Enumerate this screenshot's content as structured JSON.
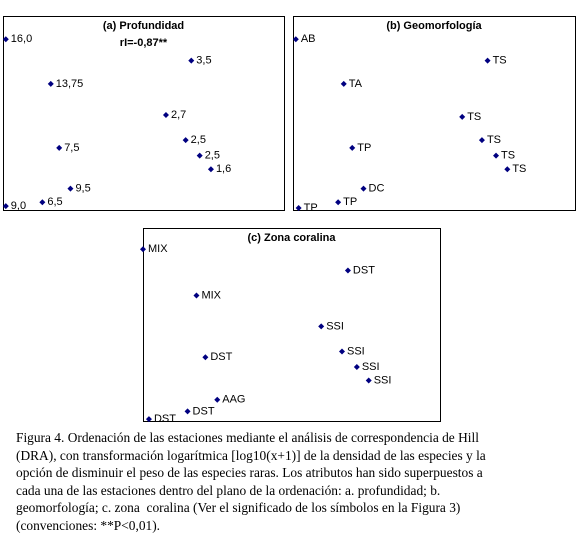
{
  "chart_data": [
    {
      "type": "scatter",
      "title": "(a) Profundidad",
      "subtitle": "rI=-0,87**",
      "color": "#000080",
      "xlim": [
        0,
        100
      ],
      "ylim": [
        0,
        100
      ],
      "x": [
        1,
        67,
        17,
        58,
        65,
        70,
        20,
        74,
        24,
        14,
        1
      ],
      "values": [
        88,
        77,
        65,
        49,
        36,
        28,
        32,
        21,
        11,
        4,
        2
      ],
      "labels": [
        "16,0",
        "3,5",
        "13,75",
        "2,7",
        "2,5",
        "2,5",
        "7,5",
        "1,6",
        "9,5",
        "6,5",
        "9,0"
      ]
    },
    {
      "type": "scatter",
      "title": "(b) Geomorfología",
      "color": "#000080",
      "xlim": [
        0,
        100
      ],
      "ylim": [
        0,
        100
      ],
      "x": [
        1,
        69,
        18,
        60,
        67,
        21,
        72,
        76,
        25,
        16,
        2
      ],
      "values": [
        88,
        77,
        65,
        48,
        36,
        32,
        28,
        21,
        11,
        4,
        1
      ],
      "labels": [
        "AB",
        "TS",
        "TA",
        "TS",
        "TS",
        "TP",
        "TS",
        "TS",
        "DC",
        "TP",
        "TP"
      ]
    },
    {
      "type": "scatter",
      "title": "(c) Zona coralina",
      "color": "#000080",
      "xlim": [
        0,
        100
      ],
      "ylim": [
        0,
        100
      ],
      "x": [
        0,
        69,
        18,
        60,
        67,
        21,
        72,
        76,
        25,
        15,
        2
      ],
      "values": [
        89,
        78,
        65,
        49,
        36,
        33,
        28,
        21,
        11,
        5,
        1
      ],
      "labels": [
        "MIX",
        "DST",
        "MIX",
        "SSI",
        "SSI",
        "DST",
        "SSI",
        "SSI",
        "AAG",
        "DST",
        "DST"
      ]
    }
  ],
  "caption": [
    "Figura 4. Ordenación de las estaciones mediante el análisis de correspondencia de Hill",
    "(DRA), con transformación logarítmica [log10(x+1)] de la densidad de las especies y la",
    "opción de disminuir el peso de las especies raras. Los atributos han sido superpuestos a",
    "cada una de las estaciones dentro del plano de la ordenación: a. profundidad; b.",
    "geomorfología; c. zona  coralina (Ver el significado de los símbolos en la Figura 3)",
    "(convenciones: **P<0,01)."
  ]
}
